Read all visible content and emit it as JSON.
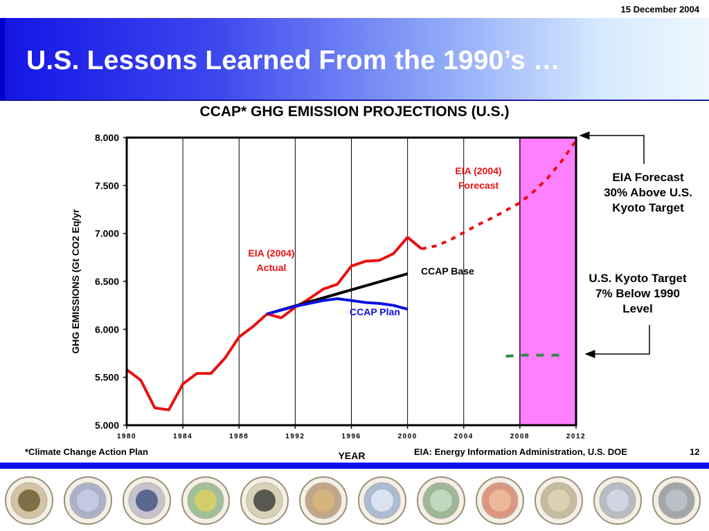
{
  "header": {
    "date": "15 December 2004",
    "title": "U.S. Lessons Learned From the 1990’s …"
  },
  "chart_data": {
    "type": "line",
    "title": "CCAP* GHG EMISSION PROJECTIONS (U.S.)",
    "xlabel": "YEAR",
    "ylabel": "GHG EMISSIONS  (Gt CO2 Eq/yr",
    "xlim": [
      1980,
      2012
    ],
    "ylim": [
      5.0,
      8.0
    ],
    "x_ticks": [
      "1980",
      "1984",
      "1988",
      "1992",
      "1996",
      "2000",
      "2004",
      "2008",
      "2012"
    ],
    "y_ticks": [
      "5.000",
      "5.500",
      "6.000",
      "6.500",
      "7.000",
      "7.500",
      "8.000"
    ],
    "grid": "vertical",
    "shaded_region": {
      "x_start": 2008,
      "x_end": 2012,
      "color": "#ff80ff"
    },
    "series": [
      {
        "name": "EIA (2004) Actual",
        "style": "solid",
        "color": "#e81010",
        "x": [
          1980,
          1981,
          1982,
          1983,
          1984,
          1985,
          1986,
          1987,
          1988,
          1989,
          1990,
          1991,
          1992,
          1993,
          1994,
          1995,
          1996,
          1997,
          1998,
          1999,
          2000,
          2001
        ],
        "y": [
          5.58,
          5.47,
          5.18,
          5.16,
          5.43,
          5.54,
          5.54,
          5.7,
          5.92,
          6.03,
          6.16,
          6.12,
          6.23,
          6.32,
          6.42,
          6.47,
          6.66,
          6.71,
          6.72,
          6.79,
          6.96,
          6.84
        ]
      },
      {
        "name": "EIA (2004) Forecast",
        "style": "dotted",
        "color": "#e81010",
        "x": [
          2001,
          2002,
          2003,
          2004,
          2005,
          2006,
          2007,
          2008,
          2009,
          2010,
          2011,
          2012
        ],
        "y": [
          6.84,
          6.87,
          6.93,
          7.01,
          7.09,
          7.16,
          7.24,
          7.32,
          7.44,
          7.58,
          7.76,
          7.97
        ]
      },
      {
        "name": "CCAP Base",
        "style": "solid",
        "color": "#000000",
        "x": [
          1990,
          2000
        ],
        "y": [
          6.16,
          6.58
        ]
      },
      {
        "name": "CCAP Plan",
        "style": "solid",
        "color": "#0a10e0",
        "x": [
          1990,
          1992,
          1994,
          1995,
          1996,
          1997,
          1998,
          1999,
          2000
        ],
        "y": [
          6.16,
          6.24,
          6.3,
          6.32,
          6.3,
          6.28,
          6.27,
          6.25,
          6.21
        ]
      },
      {
        "name": "U.S. Kyoto Target",
        "style": "dashed",
        "color": "#2a8a4a",
        "x": [
          2007,
          2008,
          2009,
          2010,
          2011
        ],
        "y": [
          5.72,
          5.73,
          5.73,
          5.73,
          5.73
        ]
      }
    ],
    "annotations": {
      "actual": [
        "EIA (2004)",
        "Actual"
      ],
      "forecast": [
        "EIA (2004)",
        "Forecast"
      ],
      "ccap_base": "CCAP Base",
      "ccap_plan": "CCAP Plan",
      "eia_callout": [
        "EIA Forecast",
        "30% Above U.S.",
        "Kyoto Target"
      ],
      "kyoto_callout": [
        "U.S. Kyoto Target",
        "7% Below 1990",
        "Level"
      ]
    },
    "colors": {
      "actual": "#e81010",
      "ccap_base": "#000000",
      "ccap_plan": "#0a10e0",
      "kyoto": "#2a8a4a",
      "shade": "#ff80ff"
    }
  },
  "footer": {
    "footnote": "*Climate Change Action Plan",
    "source": "EIA: Energy Information Administration, U.S. DOE",
    "page": "12"
  },
  "seals": [
    "interior-seal-icon",
    "commerce-seal-icon",
    "defense-seal-icon",
    "energy-seal-icon",
    "hhs-seal-icon",
    "agriculture-seal-icon",
    "transportation-seal-icon",
    "epa-seal-icon",
    "nasa-seal-icon",
    "nsf-seal-icon",
    "state-seal-icon",
    "executive-office-seal-icon"
  ]
}
